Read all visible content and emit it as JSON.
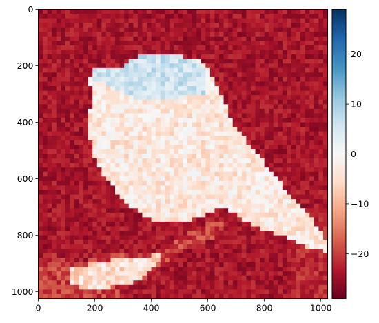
{
  "chart_data": {
    "type": "heatmap",
    "title": "",
    "xlabel": "",
    "ylabel": "",
    "grid_resolution": 64,
    "xlim": [
      0,
      1024
    ],
    "ylim": [
      1024,
      0
    ],
    "x_ticks": [
      "0",
      "200",
      "400",
      "600",
      "800",
      "1000"
    ],
    "y_ticks": [
      "0",
      "200",
      "400",
      "600",
      "800",
      "1000"
    ],
    "x_tick_values": [
      0,
      200,
      400,
      600,
      800,
      1000
    ],
    "y_tick_values": [
      0,
      200,
      400,
      600,
      800,
      1000
    ],
    "colormap": "RdBu",
    "colorbar": {
      "vmin": -29,
      "vmax": 29,
      "ticks": [
        "20",
        "10",
        "0",
        "−10",
        "−20"
      ],
      "tick_values": [
        20,
        10,
        0,
        -10,
        -20
      ],
      "position": "right"
    },
    "description_values": {
      "background_value": -24,
      "bird_body_value": -3,
      "bird_head_value": 6,
      "branch_value": -5
    },
    "regions": {
      "bird": [
        [
          210,
          210
        ],
        [
          240,
          230
        ],
        [
          290,
          215
        ],
        [
          350,
          170
        ],
        [
          440,
          175
        ],
        [
          560,
          170
        ],
        [
          600,
          200
        ],
        [
          640,
          280
        ],
        [
          690,
          400
        ],
        [
          780,
          520
        ],
        [
          860,
          620
        ],
        [
          930,
          700
        ],
        [
          1000,
          780
        ],
        [
          1024,
          830
        ],
        [
          1024,
          860
        ],
        [
          940,
          840
        ],
        [
          860,
          800
        ],
        [
          800,
          780
        ],
        [
          720,
          740
        ],
        [
          650,
          700
        ],
        [
          620,
          720
        ],
        [
          560,
          740
        ],
        [
          500,
          760
        ],
        [
          420,
          750
        ],
        [
          370,
          730
        ],
        [
          330,
          700
        ],
        [
          290,
          660
        ],
        [
          240,
          600
        ],
        [
          200,
          520
        ],
        [
          180,
          450
        ],
        [
          185,
          330
        ],
        [
          200,
          270
        ],
        [
          160,
          260
        ],
        [
          200,
          240
        ]
      ],
      "head": [
        [
          200,
          210
        ],
        [
          290,
          210
        ],
        [
          340,
          170
        ],
        [
          430,
          160
        ],
        [
          530,
          170
        ],
        [
          580,
          200
        ],
        [
          600,
          260
        ],
        [
          600,
          300
        ],
        [
          460,
          320
        ],
        [
          360,
          320
        ],
        [
          250,
          270
        ],
        [
          200,
          250
        ]
      ],
      "branch": [
        [
          0,
          1024
        ],
        [
          0,
          900
        ],
        [
          50,
          870
        ],
        [
          150,
          900
        ],
        [
          250,
          860
        ],
        [
          300,
          860
        ],
        [
          340,
          880
        ],
        [
          360,
          860
        ],
        [
          450,
          860
        ],
        [
          500,
          800
        ],
        [
          560,
          780
        ],
        [
          600,
          760
        ],
        [
          650,
          760
        ],
        [
          660,
          790
        ],
        [
          600,
          820
        ],
        [
          540,
          840
        ],
        [
          500,
          860
        ],
        [
          450,
          900
        ],
        [
          400,
          930
        ],
        [
          380,
          960
        ],
        [
          300,
          990
        ],
        [
          280,
          1024
        ]
      ],
      "branch_light": [
        [
          120,
          920
        ],
        [
          200,
          900
        ],
        [
          300,
          880
        ],
        [
          380,
          880
        ],
        [
          440,
          860
        ],
        [
          420,
          900
        ],
        [
          380,
          950
        ],
        [
          300,
          980
        ],
        [
          200,
          990
        ],
        [
          120,
          980
        ]
      ]
    }
  }
}
